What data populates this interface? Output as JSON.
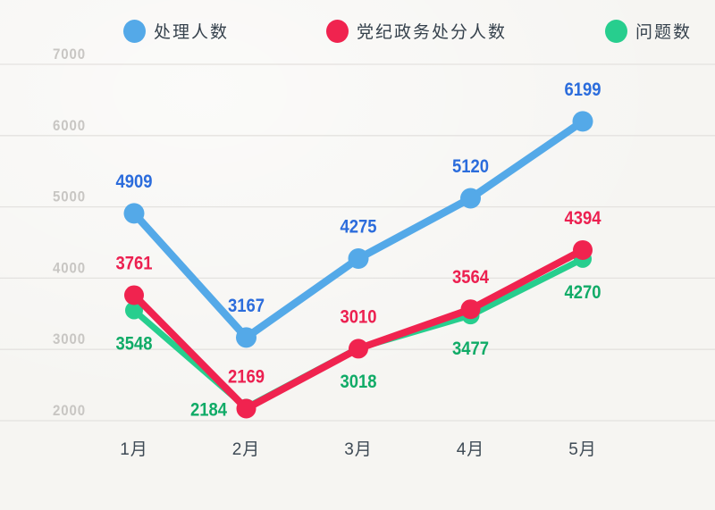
{
  "chart_data": {
    "type": "line",
    "categories": [
      "1月",
      "2月",
      "3月",
      "4月",
      "5月"
    ],
    "series": [
      {
        "name": "处理人数",
        "color": "#54a9e8",
        "label_color": "#2b6cdc",
        "values": [
          4909,
          3167,
          4275,
          5120,
          6199
        ],
        "line_width": 8.5,
        "dot_radius": 11.5,
        "label_anchors": [
          "above",
          "above",
          "above",
          "above",
          "above"
        ]
      },
      {
        "name": "党纪政务处分人数",
        "color": "#f0234f",
        "label_color": "#ec2050",
        "values": [
          3761,
          2169,
          3010,
          3564,
          4394
        ],
        "line_width": 8,
        "dot_radius": 11,
        "label_anchors": [
          "above",
          "above",
          "above",
          "above",
          "above"
        ]
      },
      {
        "name": "问题数",
        "color": "#27ce8e",
        "label_color": "#10ab67",
        "values": [
          3548,
          2184,
          3018,
          3477,
          4270
        ],
        "line_width": 7,
        "dot_radius": 10,
        "label_anchors": [
          "below",
          "left",
          "below",
          "below",
          "below"
        ]
      }
    ],
    "y_axis": {
      "min": 2000,
      "max": 7000,
      "ticks": [
        2000,
        3000,
        4000,
        5000,
        6000,
        7000
      ],
      "tick_color": "#c8c6c3"
    },
    "x_axis": {
      "label_color": "#3e4a55"
    },
    "grid": {
      "visible": true,
      "color": "#e4e2df"
    },
    "legend": {
      "position": "top",
      "text_color": "#36424d"
    },
    "background": "#f6f5f2"
  }
}
